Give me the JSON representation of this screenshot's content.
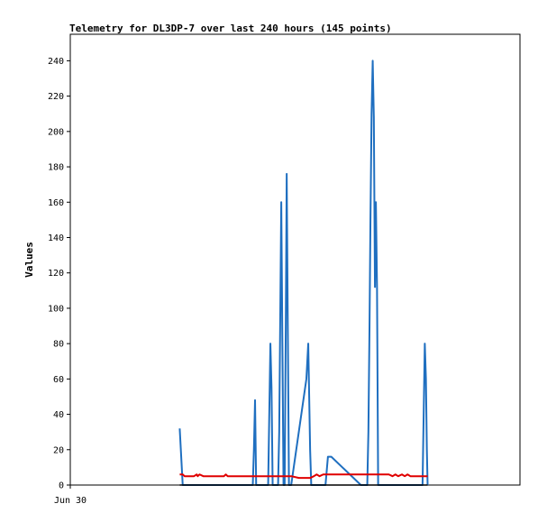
{
  "chart_data": {
    "type": "line",
    "title": "Telemetry for DL3DP-7 over last 240 hours (145 points)",
    "ylabel": "Values",
    "xlabel": "",
    "x_tick_labels": [
      "Jun 30"
    ],
    "x_axis": "time index (points 0-145)",
    "xlim": [
      0,
      240
    ],
    "ylim": [
      0,
      255
    ],
    "y_ticks": [
      0,
      20,
      40,
      60,
      80,
      100,
      120,
      140,
      160,
      180,
      200,
      220,
      240
    ],
    "grid": false,
    "legend": "none",
    "series": [
      {
        "color": "#1f6fc0",
        "points": [
          [
            58.4,
            32
          ],
          [
            60.0,
            0
          ],
          [
            97.4,
            0
          ],
          [
            98.0,
            20
          ],
          [
            98.6,
            48
          ],
          [
            99.2,
            0
          ],
          [
            105.6,
            0
          ],
          [
            106.2,
            40
          ],
          [
            106.8,
            80
          ],
          [
            107.4,
            55
          ],
          [
            108.0,
            0
          ],
          [
            110.9,
            0
          ],
          [
            111.5,
            30
          ],
          [
            112.1,
            100
          ],
          [
            112.6,
            160
          ],
          [
            113.2,
            80
          ],
          [
            113.8,
            0
          ],
          [
            114.4,
            0
          ],
          [
            115.0,
            88
          ],
          [
            115.5,
            176
          ],
          [
            116.1,
            88
          ],
          [
            116.7,
            0
          ],
          [
            117.9,
            0
          ],
          [
            126.0,
            60
          ],
          [
            127.0,
            80
          ],
          [
            128.0,
            20
          ],
          [
            128.6,
            0
          ],
          [
            136.2,
            0
          ],
          [
            137.5,
            16
          ],
          [
            139.3,
            16
          ],
          [
            155.1,
            0
          ],
          [
            158.5,
            0
          ],
          [
            159.1,
            30
          ],
          [
            159.7,
            90
          ],
          [
            160.2,
            150
          ],
          [
            160.8,
            210
          ],
          [
            161.4,
            240
          ],
          [
            162.0,
            208
          ],
          [
            162.6,
            112
          ],
          [
            163.1,
            160
          ],
          [
            163.7,
            112
          ],
          [
            164.3,
            0
          ],
          [
            188.0,
            0
          ],
          [
            188.6,
            40
          ],
          [
            189.2,
            80
          ],
          [
            189.8,
            60
          ],
          [
            190.3,
            20
          ],
          [
            190.7,
            0
          ]
        ]
      },
      {
        "color": "#e00000",
        "points": [
          [
            58.4,
            6
          ],
          [
            60.0,
            6
          ],
          [
            61.0,
            5
          ],
          [
            66.0,
            5
          ],
          [
            67.5,
            6
          ],
          [
            68.0,
            5
          ],
          [
            69.0,
            6
          ],
          [
            71.0,
            5
          ],
          [
            82.0,
            5
          ],
          [
            83.0,
            6
          ],
          [
            84.0,
            5
          ],
          [
            96.0,
            5
          ],
          [
            108.0,
            5
          ],
          [
            118.0,
            5
          ],
          [
            122.0,
            4
          ],
          [
            128.0,
            4
          ],
          [
            130.0,
            5
          ],
          [
            131.5,
            6
          ],
          [
            133.0,
            5
          ],
          [
            135.0,
            6
          ],
          [
            140.0,
            6
          ],
          [
            155.0,
            6
          ],
          [
            170.0,
            6
          ],
          [
            172.0,
            5
          ],
          [
            173.5,
            6
          ],
          [
            175.0,
            5
          ],
          [
            177.0,
            6
          ],
          [
            178.5,
            5
          ],
          [
            180.0,
            6
          ],
          [
            181.5,
            5
          ],
          [
            190.7,
            5
          ]
        ]
      },
      {
        "color": "#000000",
        "points": [
          [
            58.4,
            0
          ],
          [
            190.7,
            0
          ]
        ]
      }
    ]
  }
}
